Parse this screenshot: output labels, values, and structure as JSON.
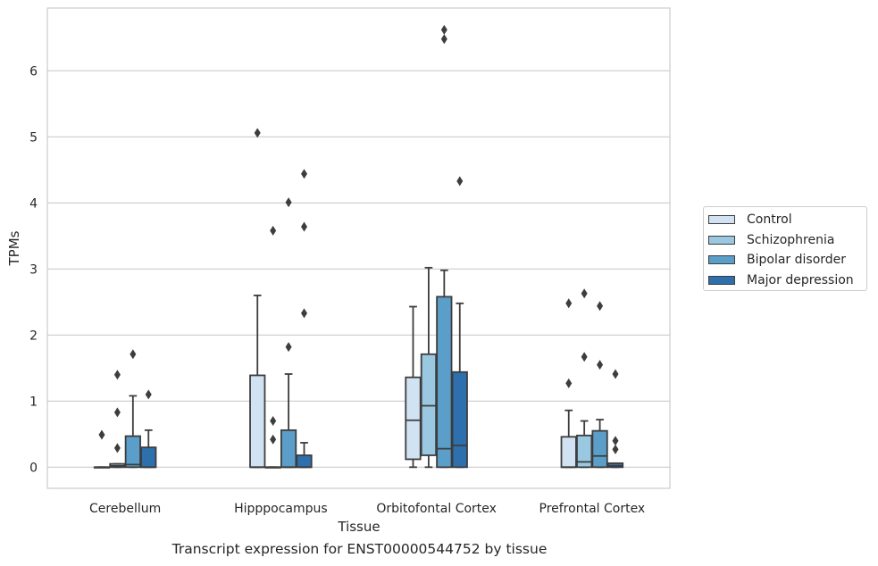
{
  "chart_data": {
    "type": "box",
    "title": "",
    "caption": "Transcript expression for ENST00000544752 by tissue",
    "xlabel": "Tissue",
    "ylabel": "TPMs",
    "ylim": [
      -0.32,
      6.95
    ],
    "yticks": [
      "0",
      "1",
      "2",
      "3",
      "4",
      "5",
      "6"
    ],
    "grid": "horizontal",
    "legend_position": "right",
    "categories": [
      "Cerebellum",
      "Hipppocampus",
      "Orbitofontal Cortex",
      "Prefrontal Cortex"
    ],
    "series": [
      {
        "name": "Control",
        "color": "#d1e2f2",
        "boxes": [
          {
            "q1": 0,
            "median": 0,
            "q3": 0,
            "whisker_low": 0,
            "whisker_high": 0,
            "outliers": [
              0.49
            ]
          },
          {
            "q1": 0,
            "median": 0,
            "q3": 1.39,
            "whisker_low": 0,
            "whisker_high": 2.6,
            "outliers": [
              5.06
            ]
          },
          {
            "q1": 0.12,
            "median": 0.71,
            "q3": 1.36,
            "whisker_low": 0,
            "whisker_high": 2.43,
            "outliers": []
          },
          {
            "q1": 0,
            "median": 0,
            "q3": 0.46,
            "whisker_low": 0,
            "whisker_high": 0.86,
            "outliers": [
              1.27,
              2.48
            ]
          }
        ]
      },
      {
        "name": "Schizophrenia",
        "color": "#9ac8e0",
        "boxes": [
          {
            "q1": 0,
            "median": 0.02,
            "q3": 0.05,
            "whisker_low": 0,
            "whisker_high": 0.05,
            "outliers": [
              0.29,
              0.83,
              1.4
            ]
          },
          {
            "q1": 0,
            "median": 0,
            "q3": 0,
            "whisker_low": 0,
            "whisker_high": 0,
            "outliers": [
              0.42,
              0.7,
              3.58
            ]
          },
          {
            "q1": 0.18,
            "median": 0.93,
            "q3": 1.71,
            "whisker_low": 0,
            "whisker_high": 3.02,
            "outliers": []
          },
          {
            "q1": 0,
            "median": 0.08,
            "q3": 0.48,
            "whisker_low": 0,
            "whisker_high": 0.7,
            "outliers": [
              1.67,
              2.63
            ]
          }
        ]
      },
      {
        "name": "Bipolar disorder",
        "color": "#5a9ec9",
        "boxes": [
          {
            "q1": 0,
            "median": 0.04,
            "q3": 0.47,
            "whisker_low": 0,
            "whisker_high": 1.08,
            "outliers": [
              1.71
            ]
          },
          {
            "q1": 0,
            "median": 0,
            "q3": 0.56,
            "whisker_low": 0,
            "whisker_high": 1.41,
            "outliers": [
              1.82,
              4.01
            ]
          },
          {
            "q1": 0,
            "median": 0.28,
            "q3": 2.58,
            "whisker_low": 0,
            "whisker_high": 2.98,
            "outliers": [
              6.48,
              6.62
            ]
          },
          {
            "q1": 0,
            "median": 0.17,
            "q3": 0.55,
            "whisker_low": 0,
            "whisker_high": 0.72,
            "outliers": [
              1.55,
              2.44
            ]
          }
        ]
      },
      {
        "name": "Major depression",
        "color": "#2e6fad",
        "boxes": [
          {
            "q1": 0,
            "median": 0,
            "q3": 0.3,
            "whisker_low": 0,
            "whisker_high": 0.56,
            "outliers": [
              1.1
            ]
          },
          {
            "q1": 0,
            "median": 0,
            "q3": 0.18,
            "whisker_low": 0,
            "whisker_high": 0.37,
            "outliers": [
              2.33,
              3.64,
              4.44
            ]
          },
          {
            "q1": 0,
            "median": 0.33,
            "q3": 1.44,
            "whisker_low": 0,
            "whisker_high": 2.48,
            "outliers": [
              4.33
            ]
          },
          {
            "q1": 0,
            "median": 0.02,
            "q3": 0.06,
            "whisker_low": 0,
            "whisker_high": 0.06,
            "outliers": [
              0.27,
              0.4,
              1.41
            ]
          }
        ]
      }
    ]
  }
}
